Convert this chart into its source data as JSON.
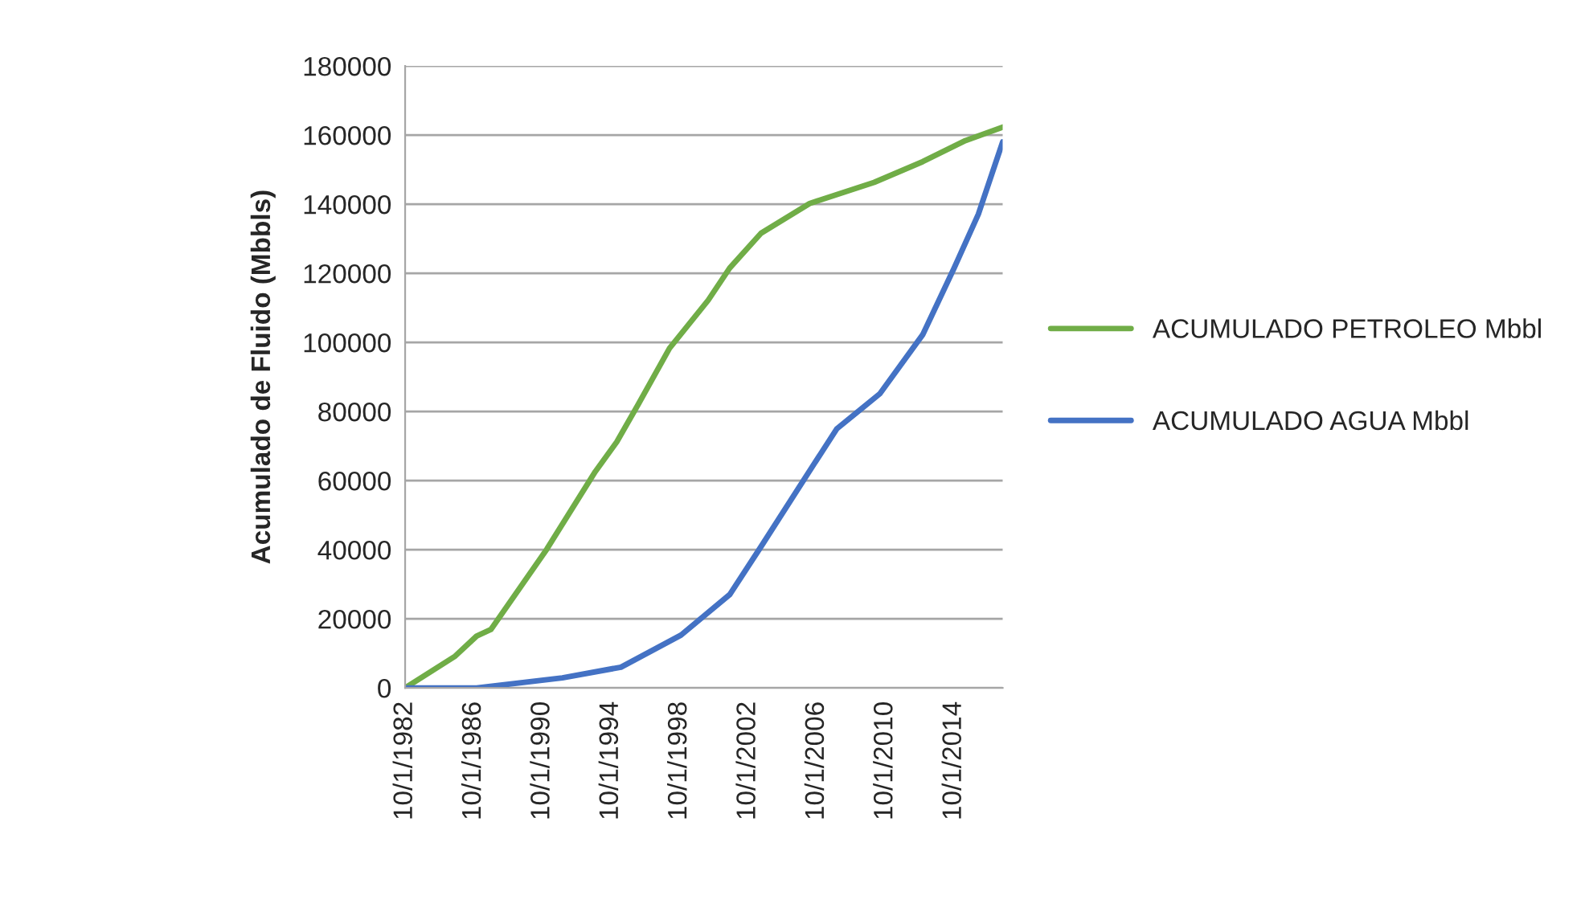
{
  "chart_data": {
    "type": "line",
    "ylabel": "Acumulado de Fluido (Mbbls)",
    "xlim": [
      "1982-10-01",
      "2017-08-01"
    ],
    "xticks": [
      {
        "value": "1982-10-01",
        "label": "10/1/1982"
      },
      {
        "value": "1986-10-01",
        "label": "10/1/1986"
      },
      {
        "value": "1990-10-01",
        "label": "10/1/1990"
      },
      {
        "value": "1994-10-01",
        "label": "10/1/1994"
      },
      {
        "value": "1998-10-01",
        "label": "10/1/1998"
      },
      {
        "value": "2002-10-01",
        "label": "10/1/2002"
      },
      {
        "value": "2006-10-01",
        "label": "10/1/2006"
      },
      {
        "value": "2010-10-01",
        "label": "10/1/2010"
      },
      {
        "value": "2014-10-01",
        "label": "10/1/2014"
      }
    ],
    "ylim": [
      0,
      180000
    ],
    "yticks": [
      0,
      20000,
      40000,
      60000,
      80000,
      100000,
      120000,
      140000,
      160000,
      180000
    ],
    "grid": "y",
    "legend": "right",
    "marker": "none",
    "line_style": "solid",
    "series": [
      {
        "name": "ACUMULADO PETROLEO Mbbl",
        "color": "#70ad47",
        "x": [
          "1982-10",
          "1985-09",
          "1986-12",
          "1987-10",
          "1991-01",
          "1993-11",
          "1995-02",
          "1996-05",
          "1998-03",
          "2000-06",
          "2001-09",
          "2003-07",
          "2006-05",
          "2010-02",
          "2012-12",
          "2015-06",
          "2017-08"
        ],
        "values": [
          0,
          9200,
          15000,
          16900,
          40100,
          62600,
          71200,
          82000,
          98300,
          112200,
          121500,
          131600,
          140200,
          146300,
          152300,
          158400,
          162300
        ]
      },
      {
        "name": "ACUMULADO AGUA Mbbl",
        "color": "#4472c4",
        "x": [
          "1982-10",
          "1986-12",
          "1991-12",
          "1995-05",
          "1998-11",
          "2001-09",
          "2003-07",
          "2006-01",
          "2007-12",
          "2010-06",
          "2012-12",
          "2014-10",
          "2016-03",
          "2017-08"
        ],
        "values": [
          0,
          0,
          2900,
          6000,
          15300,
          27000,
          40900,
          60300,
          75000,
          85100,
          102200,
          121500,
          137100,
          158000
        ]
      }
    ]
  }
}
